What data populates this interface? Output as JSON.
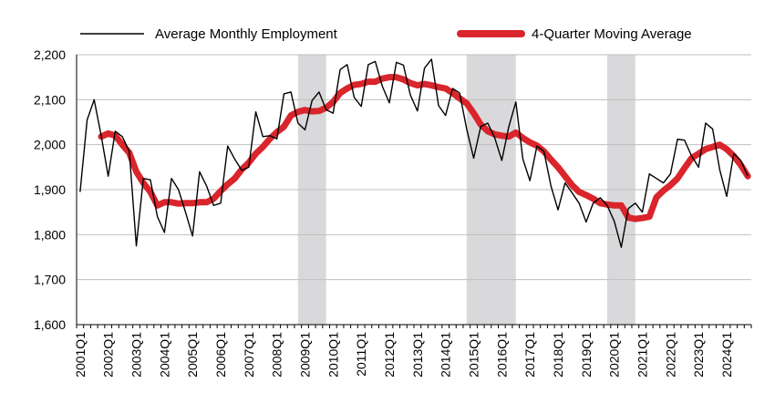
{
  "chart_data": {
    "type": "line",
    "title": "",
    "xlabel": "",
    "ylabel": "",
    "ylim": [
      1600,
      2200
    ],
    "yticks": [
      1600,
      1700,
      1800,
      1900,
      2000,
      2100,
      2200
    ],
    "ytick_labels": [
      "1,600",
      "1,700",
      "1,800",
      "1,900",
      "2,000",
      "2,100",
      "2,200"
    ],
    "grid": "horizontal",
    "legend_position": "top",
    "x": [
      "2001Q1",
      "2001Q2",
      "2001Q3",
      "2001Q4",
      "2002Q1",
      "2002Q2",
      "2002Q3",
      "2002Q4",
      "2003Q1",
      "2003Q2",
      "2003Q3",
      "2003Q4",
      "2004Q1",
      "2004Q2",
      "2004Q3",
      "2004Q4",
      "2005Q1",
      "2005Q2",
      "2005Q3",
      "2005Q4",
      "2006Q1",
      "2006Q2",
      "2006Q3",
      "2006Q4",
      "2007Q1",
      "2007Q2",
      "2007Q3",
      "2007Q4",
      "2008Q1",
      "2008Q2",
      "2008Q3",
      "2008Q4",
      "2009Q1",
      "2009Q2",
      "2009Q3",
      "2009Q4",
      "2010Q1",
      "2010Q2",
      "2010Q3",
      "2010Q4",
      "2011Q1",
      "2011Q2",
      "2011Q3",
      "2011Q4",
      "2012Q1",
      "2012Q2",
      "2012Q3",
      "2012Q4",
      "2013Q1",
      "2013Q2",
      "2013Q3",
      "2013Q4",
      "2014Q1",
      "2014Q2",
      "2014Q3",
      "2014Q4",
      "2015Q1",
      "2015Q2",
      "2015Q3",
      "2015Q4",
      "2016Q1",
      "2016Q2",
      "2016Q3",
      "2016Q4",
      "2017Q1",
      "2017Q2",
      "2017Q3",
      "2017Q4",
      "2018Q1",
      "2018Q2",
      "2018Q3",
      "2018Q4",
      "2019Q1",
      "2019Q2",
      "2019Q3",
      "2019Q4",
      "2020Q1",
      "2020Q2",
      "2020Q3",
      "2020Q4",
      "2021Q1",
      "2021Q2",
      "2021Q3",
      "2021Q4",
      "2022Q1",
      "2022Q2",
      "2022Q3",
      "2022Q4",
      "2023Q1",
      "2023Q2",
      "2023Q3",
      "2023Q4",
      "2024Q1",
      "2024Q2",
      "2024Q3",
      "2024Q4"
    ],
    "x_tick_labels": [
      "2001Q1",
      "2002Q1",
      "2003Q1",
      "2004Q1",
      "2005Q1",
      "2006Q1",
      "2007Q1",
      "2008Q1",
      "2009Q1",
      "2010Q1",
      "2011Q1",
      "2012Q1",
      "2013Q1",
      "2014Q1",
      "2015Q1",
      "2016Q1",
      "2017Q1",
      "2018Q1",
      "2019Q1",
      "2020Q1",
      "2021Q1",
      "2022Q1",
      "2023Q1",
      "2024Q1"
    ],
    "shaded_periods": [
      {
        "start": "2008Q4",
        "end": "2009Q4"
      },
      {
        "start": "2014Q4",
        "end": "2016Q3"
      },
      {
        "start": "2019Q4",
        "end": "2020Q4"
      }
    ],
    "series": [
      {
        "name": "Average Monthly Employment",
        "color": "#000000",
        "values": [
          1895,
          2055,
          2100,
          2020,
          1930,
          2030,
          2018,
          1985,
          1775,
          1925,
          1922,
          1840,
          1805,
          1925,
          1900,
          1850,
          1797,
          1940,
          1908,
          1865,
          1870,
          1997,
          1968,
          1943,
          1950,
          2073,
          2018,
          2020,
          2013,
          2113,
          2117,
          2048,
          2033,
          2098,
          2117,
          2078,
          2070,
          2167,
          2178,
          2105,
          2085,
          2178,
          2185,
          2130,
          2093,
          2183,
          2177,
          2110,
          2075,
          2170,
          2190,
          2087,
          2065,
          2125,
          2115,
          2035,
          1970,
          2040,
          2048,
          2015,
          1965,
          2040,
          2095,
          1968,
          1920,
          1997,
          1985,
          1908,
          1855,
          1915,
          1893,
          1870,
          1828,
          1870,
          1882,
          1865,
          1830,
          1772,
          1858,
          1870,
          1850,
          1935,
          1925,
          1915,
          1935,
          2012,
          2010,
          1975,
          1950,
          2048,
          2035,
          1945,
          1885,
          1980,
          1965,
          1930
        ]
      },
      {
        "name": "4-Quarter Moving Average",
        "color": "#d9252b",
        "values": [
          null,
          null,
          null,
          2018,
          2025,
          2020,
          2000,
          1982,
          1940,
          1915,
          1895,
          1865,
          1872,
          1872,
          1869,
          1870,
          1870,
          1872,
          1872,
          1880,
          1897,
          1912,
          1925,
          1945,
          1960,
          1980,
          1995,
          2013,
          2028,
          2040,
          2065,
          2073,
          2077,
          2074,
          2075,
          2082,
          2095,
          2115,
          2125,
          2133,
          2135,
          2140,
          2140,
          2147,
          2150,
          2150,
          2145,
          2137,
          2132,
          2135,
          2132,
          2128,
          2125,
          2115,
          2103,
          2092,
          2070,
          2045,
          2030,
          2023,
          2020,
          2018,
          2027,
          2015,
          2005,
          1998,
          1985,
          1967,
          1950,
          1930,
          1910,
          1895,
          1888,
          1880,
          1870,
          1867,
          1865,
          1865,
          1838,
          1835,
          1837,
          1840,
          1883,
          1898,
          1910,
          1925,
          1948,
          1970,
          1980,
          1990,
          1995,
          2000,
          1990,
          1975,
          1955,
          1930
        ]
      }
    ]
  }
}
